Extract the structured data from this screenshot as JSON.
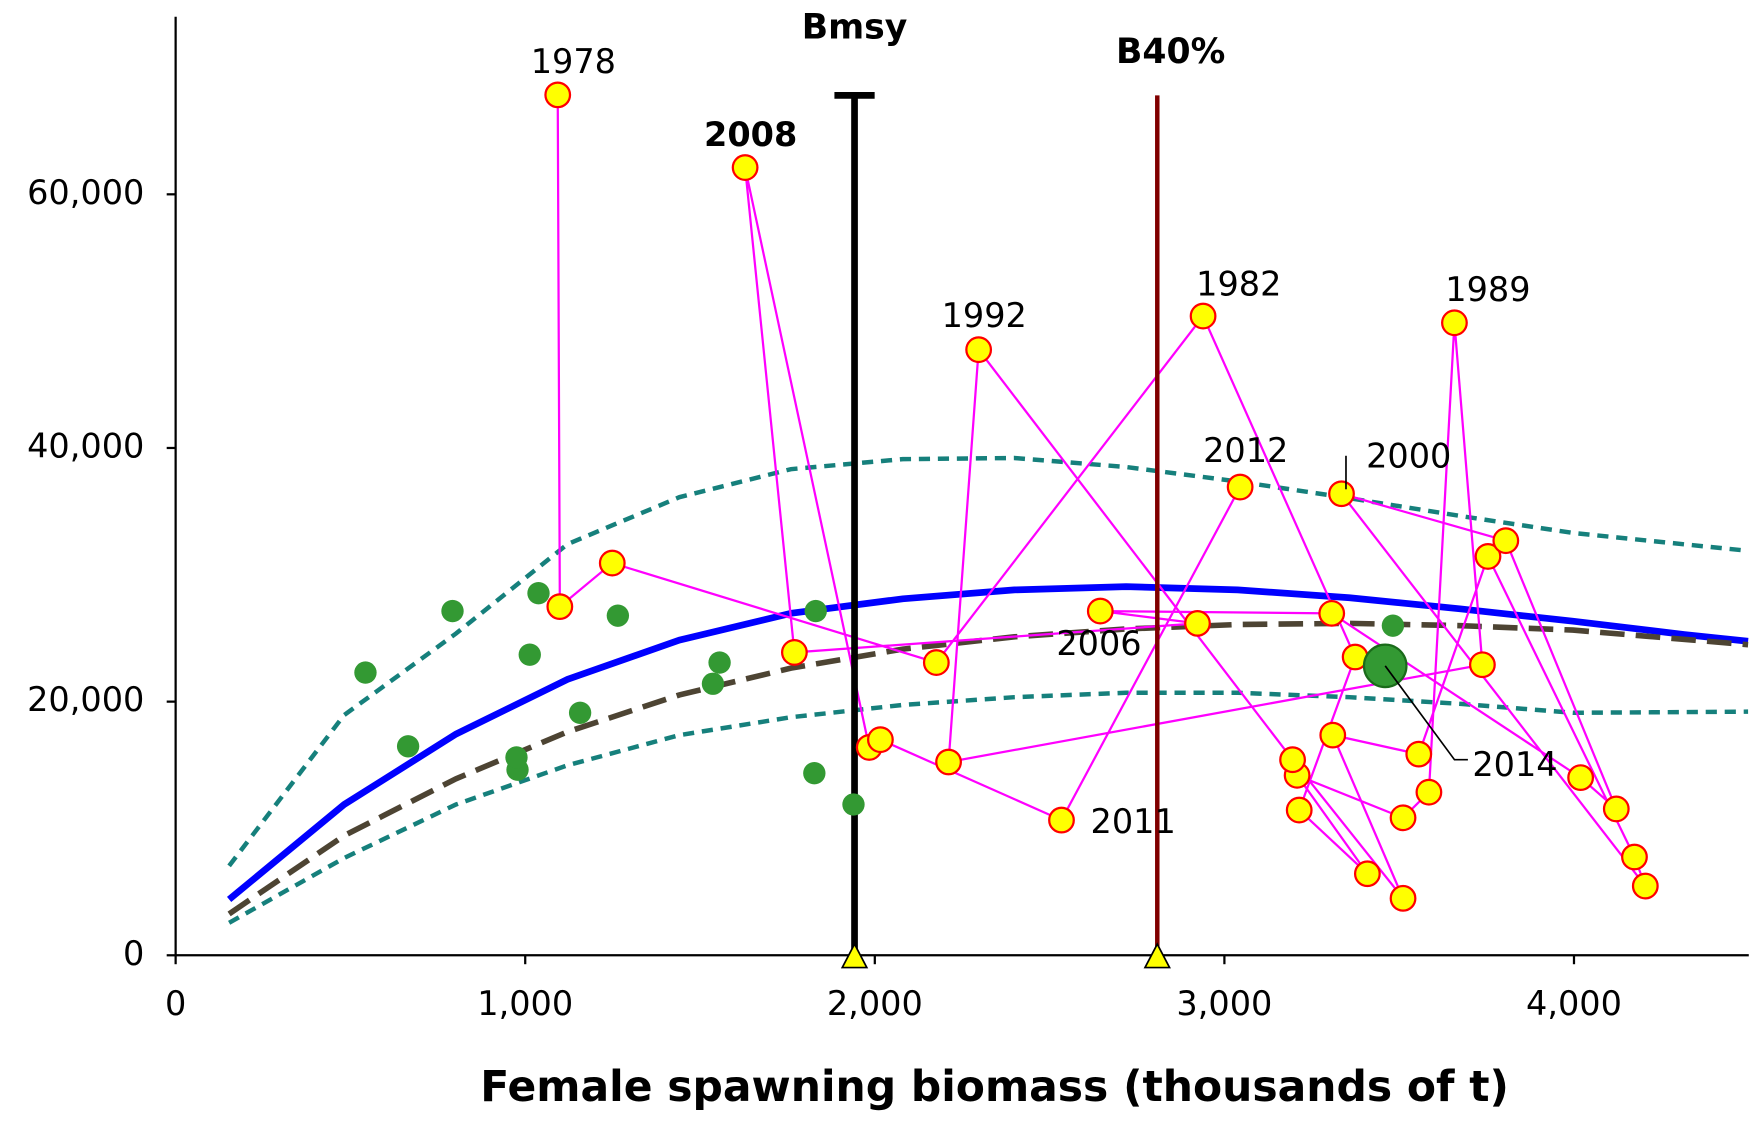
{
  "chart_data": {
    "type": "scatter",
    "xlabel": "Female spawning biomass (thousands of t)",
    "xlim": [
      0,
      4500
    ],
    "ylim": [
      0,
      74000
    ],
    "xticks": [
      0,
      {
        "value": 1000,
        "label": "1,000"
      },
      {
        "value": 2000,
        "label": "2,000"
      },
      {
        "value": 3000,
        "label": "3,000"
      },
      {
        "value": 4000,
        "label": "4,000"
      }
    ],
    "yticks": [
      0,
      {
        "value": 20000,
        "label": "20,000"
      },
      {
        "value": 40000,
        "label": "40,000"
      },
      {
        "value": 60000,
        "label": "60,000"
      }
    ],
    "reference_lines": [
      {
        "name": "Bmsy",
        "x": 1942,
        "y_top": 67800,
        "color": "#000000",
        "cap": true
      },
      {
        "name": "B40%",
        "x": 2808,
        "y_top": 67800,
        "color": "#800000",
        "cap": false
      }
    ],
    "series": [
      {
        "mode": "line",
        "dash": "dotted",
        "color": "#16807c",
        "x": [
          153,
          482,
          802,
          1121,
          1441,
          1760,
          2080,
          2399,
          2719,
          3038,
          3358,
          3677,
          3997,
          4498
        ],
        "values": [
          7050,
          18940,
          25370,
          32420,
          36120,
          38330,
          39120,
          39210,
          38500,
          37360,
          36040,
          34630,
          33300,
          31890
        ]
      },
      {
        "mode": "line",
        "dash": "dotted",
        "color": "#16807c",
        "x": [
          153,
          482,
          802,
          1121,
          1441,
          1760,
          2080,
          2399,
          2719,
          3038,
          3358,
          3677,
          3997,
          4498
        ],
        "values": [
          2560,
          7670,
          11890,
          14980,
          17360,
          18770,
          19740,
          20350,
          20700,
          20700,
          20350,
          19820,
          19120,
          19210
        ]
      },
      {
        "mode": "line",
        "dash": "solid",
        "color": "#0000ff",
        "x": [
          153,
          482,
          802,
          1121,
          1441,
          1760,
          2080,
          2399,
          2719,
          3038,
          3358,
          3677,
          3997,
          4316,
          4498
        ],
        "values": [
          4405,
          11890,
          17440,
          21760,
          24850,
          26960,
          28110,
          28810,
          29070,
          28810,
          28190,
          27310,
          26340,
          25290,
          24760
        ]
      },
      {
        "mode": "line",
        "dash": "dashed",
        "color": "#4d4433",
        "x": [
          153,
          482,
          802,
          1121,
          1441,
          1760,
          2080,
          2399,
          2719,
          3038,
          3358,
          3677,
          3997,
          4498
        ],
        "values": [
          3260,
          9430,
          13920,
          17620,
          20530,
          22640,
          24140,
          25110,
          25730,
          26080,
          26170,
          25990,
          25640,
          24490
        ]
      },
      {
        "mode": "markers",
        "marker": "small",
        "color": "#339933",
        "x": [
          543,
          665,
          792,
          978,
          975,
          1013,
          1038,
          1157,
          1265,
          1537,
          1556,
          1831,
          1827,
          1939,
          3482
        ],
        "values": [
          22290,
          16480,
          27140,
          14630,
          15600,
          23700,
          28550,
          19120,
          26780,
          21410,
          23080,
          27140,
          14360,
          11890,
          25990
        ]
      },
      {
        "mode": "lines+markers",
        "marker": "medium",
        "color": "#ffff00",
        "line_color": "#ff00ff",
        "edge_color": "#ff0000",
        "x": [
          1093,
          1099,
          1249,
          2176,
          2939,
          3374,
          3214,
          3409,
          3208,
          3511,
          3585,
          3658,
          3738,
          2211,
          2297,
          3195,
          3511,
          3310,
          3556,
          3754,
          4173,
          4204,
          3335,
          3805,
          4121,
          4019,
          3307,
          2645,
          2923,
          1770,
          1629,
          1984,
          2016,
          2534,
          3045
        ],
        "values": [
          67840,
          27490,
          30925,
          23080,
          50400,
          23520,
          11450,
          6430,
          14190,
          10840,
          12860,
          49870,
          22910,
          15240,
          47750,
          15420,
          4490,
          17360,
          15860,
          31450,
          7750,
          5460,
          36390,
          32690,
          11540,
          14010,
          26960,
          27140,
          26170,
          23880,
          62110,
          16390,
          17000,
          10660,
          36920
        ],
        "labels": [
          "1978",
          null,
          null,
          null,
          "1982",
          null,
          null,
          null,
          null,
          null,
          null,
          "1989",
          null,
          null,
          "1992",
          null,
          null,
          null,
          null,
          null,
          null,
          null,
          "2000",
          null,
          null,
          null,
          null,
          null,
          "2006",
          null,
          "2008",
          null,
          null,
          "2011",
          "2012"
        ]
      },
      {
        "mode": "markers",
        "marker": "large",
        "color": "#339933",
        "edge_color": "#1a6b1a",
        "x": [
          3460
        ],
        "values": [
          22820
        ],
        "labels": [
          "2014"
        ]
      }
    ]
  }
}
